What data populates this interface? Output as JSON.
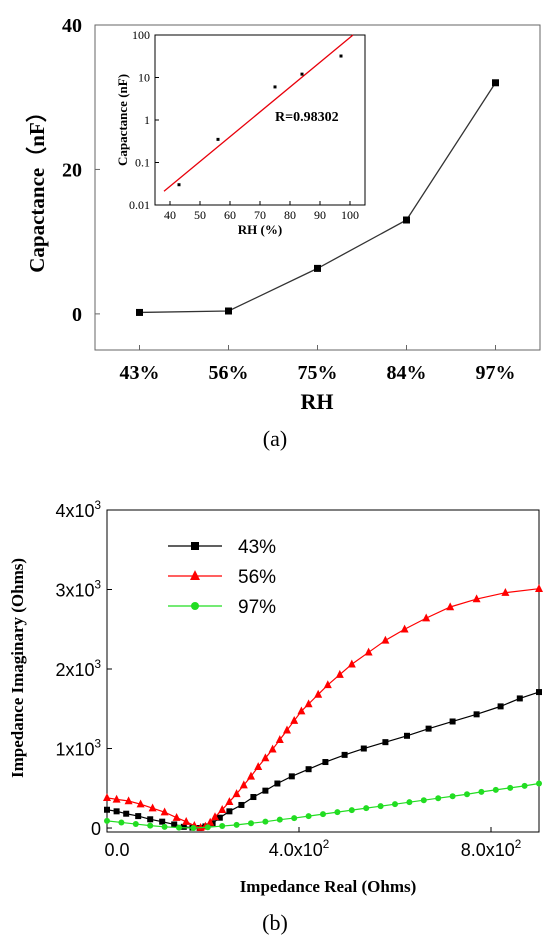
{
  "panel_labels": [
    "(a)",
    "(b)"
  ],
  "chart_data": [
    {
      "type": "line",
      "xlabel": "RH",
      "ylabel": "Capactance（nF）",
      "categories": [
        "43%",
        "56%",
        "75%",
        "84%",
        "97%"
      ],
      "values": [
        0.2,
        0.4,
        6.3,
        13.0,
        32.0
      ],
      "ylim": [
        -5,
        40
      ],
      "yticks": [
        0,
        20,
        40
      ],
      "grid": false,
      "marker": "square",
      "colors": {
        "series": "#000000"
      }
    },
    {
      "type": "scatter",
      "xlabel": "RH (%)",
      "ylabel": "Capactance (nF)",
      "xlim": [
        35,
        105
      ],
      "xticks": [
        40,
        50,
        60,
        70,
        80,
        90,
        100
      ],
      "ylim": [
        0.01,
        100
      ],
      "yscale": "log",
      "yticks": [
        0.01,
        0.1,
        1,
        10,
        100
      ],
      "ytick_labels": [
        "0.01",
        "0.1",
        "1",
        "10",
        "100"
      ],
      "points": {
        "x": [
          43,
          56,
          75,
          84,
          97
        ],
        "y": [
          0.03,
          0.35,
          6.0,
          12.0,
          32.0
        ]
      },
      "fit_line": {
        "x": [
          38,
          101
        ],
        "y": [
          0.021,
          100
        ],
        "color": "#e8000b"
      },
      "annotation": "R=0.98302"
    },
    {
      "type": "line",
      "xlabel": "Impedance Real (Ohms)",
      "ylabel": "Impedance Imaginary (Ohms)",
      "xlim": [
        0,
        900
      ],
      "xticks": [
        0,
        400,
        800
      ],
      "xtick_labels": [
        "0.0",
        "4.0x10",
        "8.0x10"
      ],
      "xtick_exponents": [
        "",
        "2",
        "2"
      ],
      "ylim": [
        -50,
        4000
      ],
      "yticks": [
        0,
        1000,
        2000,
        3000,
        4000
      ],
      "ytick_labels": [
        "0",
        "1x10",
        "2x10",
        "3x10",
        "4x10"
      ],
      "ytick_exponents": [
        "",
        "3",
        "3",
        "3",
        "3"
      ],
      "legend_position": "top-left",
      "series": [
        {
          "name": "43%",
          "color": "#000000",
          "marker": "square",
          "x": [
            0,
            20,
            40,
            65,
            90,
            115,
            140,
            160,
            178,
            193,
            205,
            220,
            235,
            255,
            280,
            305,
            330,
            355,
            385,
            420,
            455,
            495,
            535,
            580,
            625,
            670,
            720,
            770,
            820,
            860,
            900
          ],
          "y": [
            230,
            210,
            180,
            150,
            110,
            80,
            45,
            15,
            5,
            0,
            20,
            60,
            130,
            210,
            290,
            390,
            470,
            560,
            650,
            740,
            830,
            920,
            1000,
            1080,
            1160,
            1250,
            1340,
            1430,
            1530,
            1630,
            1710
          ]
        },
        {
          "name": "56%",
          "color": "#ff0000",
          "marker": "triangle",
          "x": [
            0,
            20,
            45,
            70,
            95,
            120,
            145,
            165,
            182,
            195,
            205,
            215,
            225,
            240,
            255,
            270,
            285,
            300,
            315,
            330,
            345,
            360,
            375,
            390,
            405,
            420,
            440,
            460,
            485,
            510,
            545,
            580,
            620,
            665,
            715,
            770,
            830,
            900
          ],
          "y": [
            380,
            360,
            340,
            300,
            250,
            200,
            130,
            80,
            30,
            5,
            20,
            70,
            140,
            230,
            330,
            430,
            540,
            650,
            770,
            880,
            990,
            1110,
            1230,
            1350,
            1470,
            1560,
            1680,
            1800,
            1930,
            2060,
            2210,
            2360,
            2500,
            2640,
            2780,
            2880,
            2960,
            3010
          ]
        },
        {
          "name": "97%",
          "color": "#22dd22",
          "marker": "circle",
          "x": [
            0,
            30,
            60,
            90,
            120,
            150,
            180,
            210,
            240,
            270,
            300,
            330,
            360,
            390,
            420,
            450,
            480,
            510,
            540,
            570,
            600,
            630,
            660,
            690,
            720,
            750,
            780,
            810,
            840,
            870,
            900
          ],
          "y": [
            90,
            70,
            50,
            30,
            15,
            5,
            0,
            10,
            25,
            40,
            60,
            80,
            105,
            125,
            150,
            175,
            200,
            225,
            250,
            275,
            300,
            325,
            350,
            375,
            400,
            425,
            455,
            480,
            505,
            530,
            560
          ]
        }
      ]
    }
  ]
}
